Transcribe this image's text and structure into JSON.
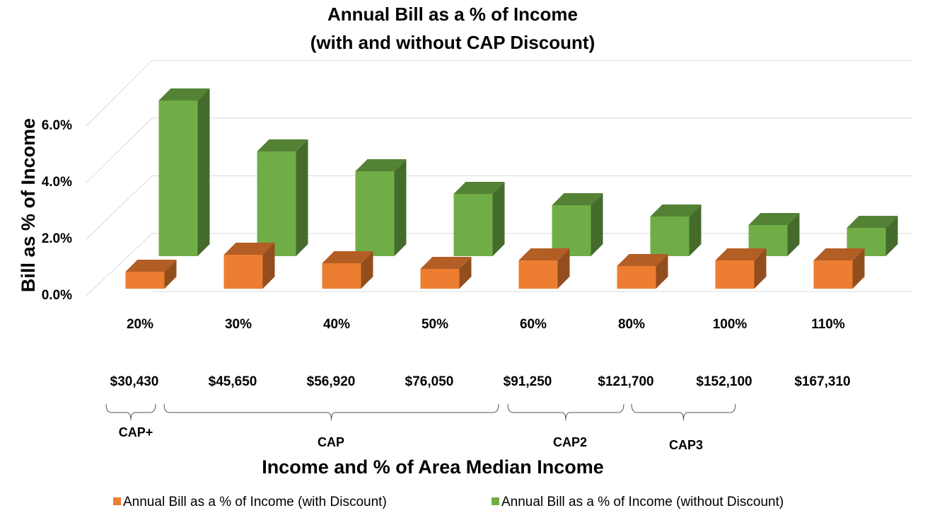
{
  "chart_data": {
    "type": "bar",
    "title": "Annual Bill as a % of Income",
    "subtitle": "(with and without CAP Discount)",
    "y_label": "Bill as % of Income",
    "x_label": "Income and % of Area Median Income",
    "categories": [
      "20%",
      "30%",
      "40%",
      "50%",
      "60%",
      "80%",
      "100%",
      "110%"
    ],
    "incomes": [
      "$30,430",
      "$45,650",
      "$56,920",
      "$76,050",
      "$91,250",
      "$121,700",
      "$152,100",
      "$167,310"
    ],
    "groups": [
      "CAP+",
      "CAP",
      "CAP2",
      "CAP3"
    ],
    "series": [
      {
        "name": "Annual Bill as a % of Income (with Discount)",
        "color": "#ed7d31",
        "values": [
          0.6,
          1.2,
          0.9,
          0.7,
          1.0,
          0.8,
          1.0,
          1.0
        ]
      },
      {
        "name": "Annual Bill as a % of Income (without Discount)",
        "color": "#70ad47",
        "values": [
          5.5,
          3.7,
          3.0,
          2.2,
          1.8,
          1.4,
          1.1,
          1.0
        ]
      }
    ],
    "ylim": [
      0,
      6
    ],
    "yticks": [
      {
        "value": 0,
        "label": "0.0%"
      },
      {
        "value": 2,
        "label": "2.0%"
      },
      {
        "value": 4,
        "label": "4.0%"
      },
      {
        "value": 6,
        "label": "6.0%"
      }
    ],
    "grid": true,
    "legend": "bottom"
  }
}
